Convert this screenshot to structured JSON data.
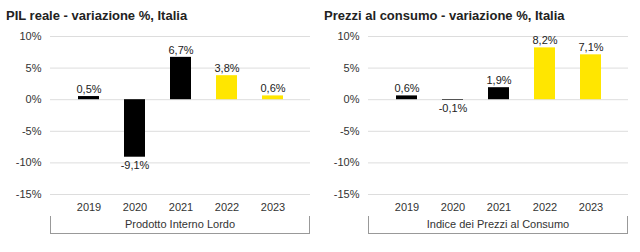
{
  "chart_data": [
    {
      "type": "bar",
      "title": "PIL reale - variazione %, Italia",
      "xlabel": "Prodotto Interno Lordo",
      "categories": [
        "2019",
        "2020",
        "2021",
        "2022",
        "2023"
      ],
      "values": [
        0.5,
        -9.1,
        6.7,
        3.8,
        0.6
      ],
      "value_labels": [
        "0,5%",
        "-9,1%",
        "6,7%",
        "3,8%",
        "0,6%"
      ],
      "colors": [
        "#000000",
        "#000000",
        "#000000",
        "#ffe600",
        "#ffe600"
      ],
      "ylim": [
        -15,
        10
      ],
      "yticks": [
        {
          "value": -15,
          "label": "-15%"
        },
        {
          "value": -10,
          "label": "-10%"
        },
        {
          "value": -5,
          "label": "-5%"
        },
        {
          "value": 0,
          "label": "0%"
        },
        {
          "value": 5,
          "label": "5%"
        },
        {
          "value": 10,
          "label": "10%"
        }
      ],
      "grid": true,
      "data_labels": true
    },
    {
      "type": "bar",
      "title": "Prezzi al consumo - variazione %, Italia",
      "xlabel": "Indice dei Prezzi al Consumo",
      "categories": [
        "2019",
        "2020",
        "2021",
        "2022",
        "2023"
      ],
      "values": [
        0.6,
        -0.1,
        1.9,
        8.2,
        7.1
      ],
      "value_labels": [
        "0,6%",
        "-0,1%",
        "1,9%",
        "8,2%",
        "7,1%"
      ],
      "colors": [
        "#000000",
        "#000000",
        "#000000",
        "#ffe600",
        "#ffe600"
      ],
      "ylim": [
        -15,
        10
      ],
      "yticks": [
        {
          "value": -15,
          "label": "-15%"
        },
        {
          "value": -10,
          "label": "-10%"
        },
        {
          "value": -5,
          "label": "-5%"
        },
        {
          "value": 0,
          "label": "0%"
        },
        {
          "value": 5,
          "label": "5%"
        },
        {
          "value": 10,
          "label": "10%"
        }
      ],
      "grid": true,
      "data_labels": true
    }
  ]
}
